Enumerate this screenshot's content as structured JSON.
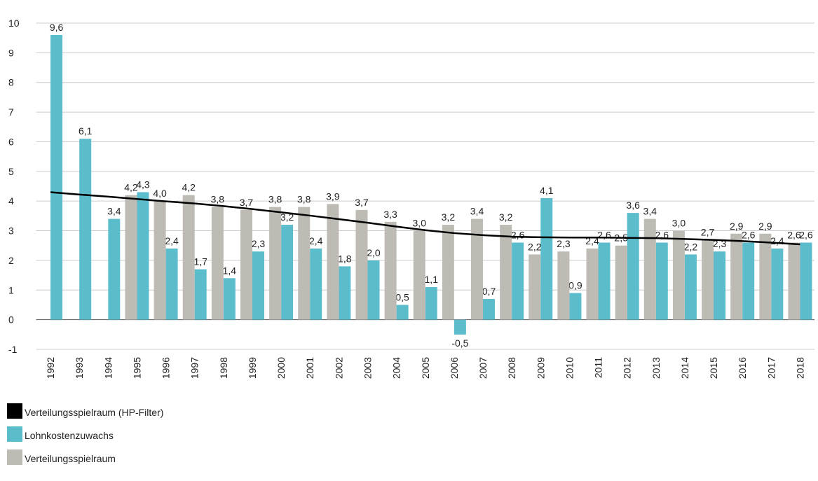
{
  "chart_data": {
    "type": "bar",
    "categories": [
      "1992",
      "1993",
      "1994",
      "1995",
      "1996",
      "1997",
      "1998",
      "1999",
      "2000",
      "2001",
      "2002",
      "2003",
      "2004",
      "2005",
      "2006",
      "2007",
      "2008",
      "2009",
      "2010",
      "2011",
      "2012",
      "2013",
      "2014",
      "2015",
      "2016",
      "2017",
      "2018"
    ],
    "series": [
      {
        "name": "Verteilungsspielraum (HP-Filter)",
        "color": "#000000",
        "type": "line",
        "values": [
          4.3,
          4.22,
          4.15,
          4.07,
          3.99,
          3.92,
          3.83,
          3.73,
          3.62,
          3.51,
          3.39,
          3.27,
          3.14,
          3.02,
          2.92,
          2.85,
          2.8,
          2.78,
          2.77,
          2.77,
          2.76,
          2.75,
          2.72,
          2.69,
          2.65,
          2.6,
          2.54
        ]
      },
      {
        "name": "Lohnkostenzuwachs",
        "color": "#5bbccc",
        "type": "bar",
        "values": [
          9.6,
          6.1,
          3.4,
          4.3,
          2.4,
          1.7,
          1.4,
          2.3,
          3.2,
          2.4,
          1.8,
          2.0,
          0.5,
          1.1,
          -0.5,
          0.7,
          2.6,
          4.1,
          0.9,
          2.6,
          3.6,
          2.6,
          2.2,
          2.3,
          2.6,
          2.4,
          2.6
        ],
        "value_labels": [
          "9,6",
          "6,1",
          "3,4",
          "4,3",
          "2,4",
          "1,7",
          "1,4",
          "2,3",
          "3,2",
          "2,4",
          "1,8",
          "2,0",
          "0,5",
          "1,1",
          "-0,5",
          "0,7",
          "2,6",
          "4,1",
          "0,9",
          "2,6",
          "3,6",
          "2,6",
          "2,2",
          "2,3",
          "2,6",
          "2,4",
          "2,6"
        ]
      },
      {
        "name": "Verteilungsspielraum",
        "color": "#bdbbb3",
        "type": "bar",
        "values": [
          null,
          null,
          null,
          4.2,
          4.0,
          4.2,
          3.8,
          3.7,
          3.8,
          3.8,
          3.9,
          3.7,
          3.3,
          3.0,
          3.2,
          3.4,
          3.2,
          2.2,
          2.3,
          2.4,
          2.5,
          3.4,
          3.0,
          2.7,
          2.9,
          2.9,
          2.6
        ],
        "value_labels": [
          null,
          null,
          null,
          "4,2",
          "4,0",
          "4,2",
          "3,8",
          "3,7",
          "3,8",
          "3,8",
          "3,9",
          "3,7",
          "3,3",
          "3,0",
          "3,2",
          "3,4",
          "3,2",
          "2,2",
          "2,3",
          "2,4",
          "2,5",
          "3,4",
          "3,0",
          "2,7",
          "2,9",
          "2,9",
          "2,6"
        ]
      }
    ],
    "ylim": [
      -1,
      10
    ],
    "yticks": [
      -1,
      0,
      1,
      2,
      3,
      4,
      5,
      6,
      7,
      8,
      9,
      10
    ],
    "grid": true
  }
}
